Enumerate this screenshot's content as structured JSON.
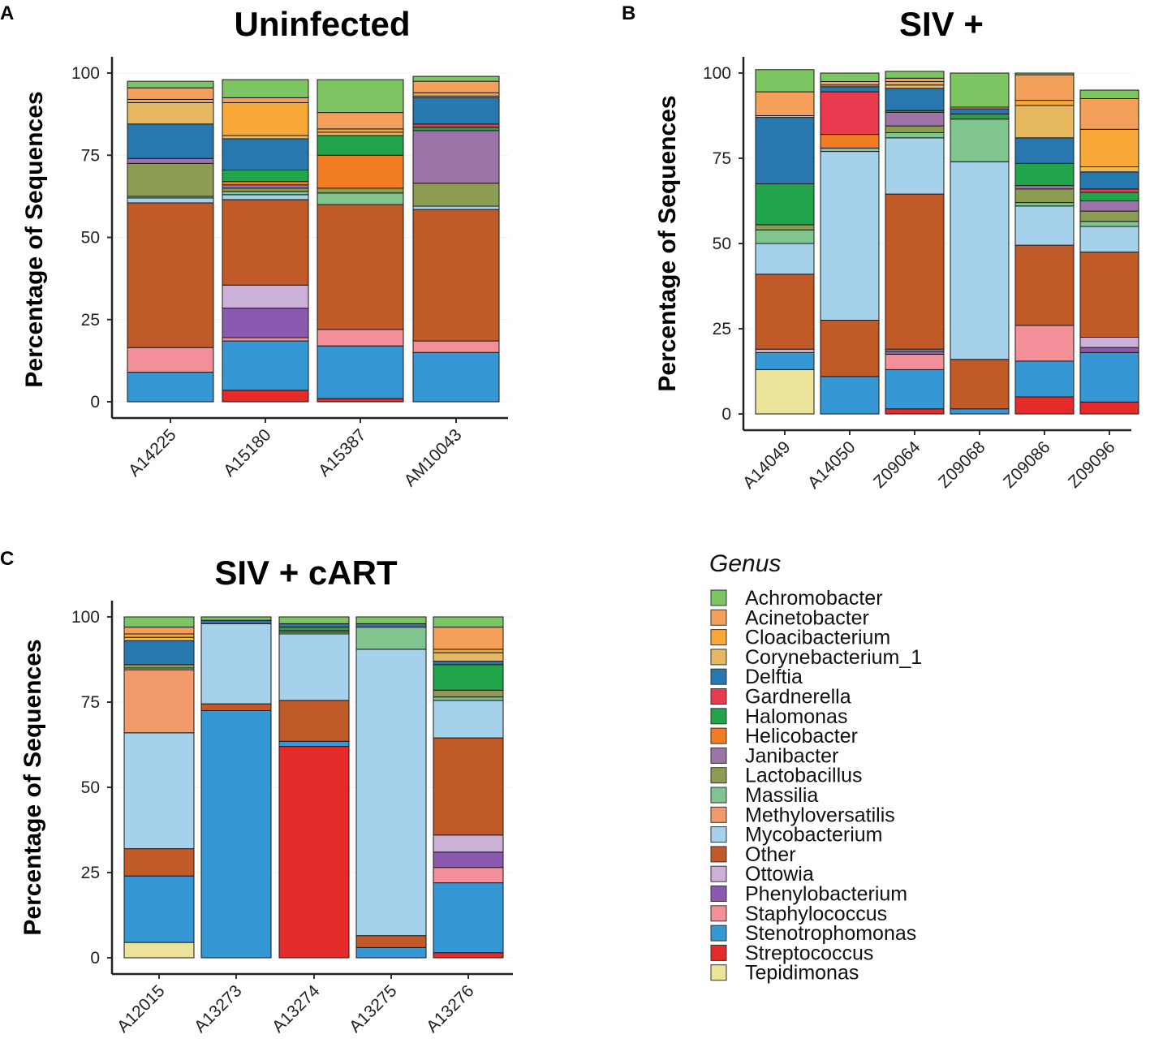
{
  "genus_order": [
    "Tepidimonas",
    "Streptococcus",
    "Stenotrophomonas",
    "Staphylococcus",
    "Phenylobacterium",
    "Ottowia",
    "Other",
    "Mycobacterium",
    "Methyloversatilis",
    "Massilia",
    "Lactobacillus",
    "Janibacter",
    "Helicobacter",
    "Halomonas",
    "Gardnerella",
    "Delftia",
    "Corynebacterium_1",
    "Cloacibacterium",
    "Acinetobacter",
    "Achromobacter"
  ],
  "colors": {
    "Achromobacter": "#7dc463",
    "Acinetobacter": "#f5a05a",
    "Cloacibacterium": "#f7a837",
    "Corynebacterium_1": "#e6b860",
    "Delftia": "#2878b0",
    "Gardnerella": "#e93a4f",
    "Halomonas": "#22a44a",
    "Helicobacter": "#f27c21",
    "Janibacter": "#9c74a8",
    "Lactobacillus": "#8c9c52",
    "Massilia": "#80c490",
    "Methyloversatilis": "#f29a6c",
    "Mycobacterium": "#a6d1ea",
    "Other": "#c05a28",
    "Ottowia": "#cbb0d8",
    "Phenylobacterium": "#8b59b0",
    "Staphylococcus": "#f28f98",
    "Stenotrophomonas": "#3597d3",
    "Streptococcus": "#e52a2a",
    "Tepidimonas": "#ebe39a"
  },
  "legend": {
    "title": "Genus",
    "items": [
      "Achromobacter",
      "Acinetobacter",
      "Cloacibacterium",
      "Corynebacterium_1",
      "Delftia",
      "Gardnerella",
      "Halomonas",
      "Helicobacter",
      "Janibacter",
      "Lactobacillus",
      "Massilia",
      "Methyloversatilis",
      "Mycobacterium",
      "Other",
      "Ottowia",
      "Phenylobacterium",
      "Staphylococcus",
      "Stenotrophomonas",
      "Streptococcus",
      "Tepidimonas"
    ]
  },
  "chart_data": [
    {
      "panel": "A",
      "type": "bar",
      "stacked": true,
      "title": "Uninfected",
      "ylabel": "Percentage of Sequences",
      "xlabel": "",
      "ylim": [
        0,
        100
      ],
      "yticks": [
        0,
        25,
        50,
        75,
        100
      ],
      "categories": [
        "A14225",
        "A15180",
        "A15387",
        "AM10043"
      ],
      "series": [
        {
          "name": "Tepidimonas",
          "values": [
            0,
            0,
            0,
            0
          ]
        },
        {
          "name": "Streptococcus",
          "values": [
            0,
            3.5,
            1,
            0
          ]
        },
        {
          "name": "Stenotrophomonas",
          "values": [
            9,
            15,
            16,
            15
          ]
        },
        {
          "name": "Staphylococcus",
          "values": [
            7.5,
            1,
            5,
            3.5
          ]
        },
        {
          "name": "Phenylobacterium",
          "values": [
            0,
            9,
            0,
            0
          ]
        },
        {
          "name": "Ottowia",
          "values": [
            0,
            7,
            0,
            0
          ]
        },
        {
          "name": "Other",
          "values": [
            44,
            26,
            38,
            40
          ]
        },
        {
          "name": "Mycobacterium",
          "values": [
            1.5,
            1.5,
            0,
            1
          ]
        },
        {
          "name": "Methyloversatilis",
          "values": [
            0,
            0,
            0,
            0
          ]
        },
        {
          "name": "Massilia",
          "values": [
            0.5,
            1,
            3.5,
            0
          ]
        },
        {
          "name": "Lactobacillus",
          "values": [
            10,
            1,
            1.5,
            7
          ]
        },
        {
          "name": "Janibacter",
          "values": [
            1.5,
            1,
            0,
            16
          ]
        },
        {
          "name": "Helicobacter",
          "values": [
            0,
            1,
            10,
            0
          ]
        },
        {
          "name": "Halomonas",
          "values": [
            0,
            3.5,
            6,
            1
          ]
        },
        {
          "name": "Gardnerella",
          "values": [
            0,
            0,
            0,
            1
          ]
        },
        {
          "name": "Delftia",
          "values": [
            10.5,
            9.5,
            0,
            8
          ]
        },
        {
          "name": "Corynebacterium_1",
          "values": [
            6.5,
            1,
            1,
            0.5
          ]
        },
        {
          "name": "Cloacibacterium",
          "values": [
            1,
            10,
            1,
            1
          ]
        },
        {
          "name": "Acinetobacter",
          "values": [
            3.5,
            1.5,
            5,
            3.5
          ]
        },
        {
          "name": "Achromobacter",
          "values": [
            2,
            5.5,
            10,
            1.5
          ]
        }
      ]
    },
    {
      "panel": "B",
      "type": "bar",
      "stacked": true,
      "title": "SIV +",
      "ylabel": "Percentage of Sequences",
      "xlabel": "",
      "ylim": [
        0,
        100
      ],
      "yticks": [
        0,
        25,
        50,
        75,
        100
      ],
      "categories": [
        "A14049",
        "A14050",
        "Z09064",
        "Z09068",
        "Z09086",
        "Z09096"
      ],
      "series": [
        {
          "name": "Tepidimonas",
          "values": [
            13,
            0,
            0,
            0,
            0,
            0
          ]
        },
        {
          "name": "Streptococcus",
          "values": [
            0,
            0,
            1.5,
            0,
            5,
            3.5
          ]
        },
        {
          "name": "Stenotrophomonas",
          "values": [
            5,
            11,
            11.5,
            1.5,
            10.5,
            14.5
          ]
        },
        {
          "name": "Staphylococcus",
          "values": [
            0,
            0,
            4.5,
            0,
            10.5,
            0
          ]
        },
        {
          "name": "Phenylobacterium",
          "values": [
            0,
            0,
            1,
            0,
            0,
            1.5
          ]
        },
        {
          "name": "Ottowia",
          "values": [
            1,
            0,
            0.5,
            0,
            0,
            3
          ]
        },
        {
          "name": "Other",
          "values": [
            22,
            16.5,
            45.5,
            14.5,
            23.5,
            25
          ]
        },
        {
          "name": "Mycobacterium",
          "values": [
            9,
            49.5,
            16.5,
            58,
            11.5,
            7.5
          ]
        },
        {
          "name": "Methyloversatilis",
          "values": [
            0,
            0,
            0,
            0,
            0,
            0
          ]
        },
        {
          "name": "Massilia",
          "values": [
            4,
            1,
            1.5,
            12.5,
            1,
            1.5
          ]
        },
        {
          "name": "Lactobacillus",
          "values": [
            1.5,
            0,
            2,
            0,
            4,
            3
          ]
        },
        {
          "name": "Janibacter",
          "values": [
            0,
            0,
            4,
            0,
            1,
            3
          ]
        },
        {
          "name": "Helicobacter",
          "values": [
            0,
            4,
            0,
            0,
            0,
            0
          ]
        },
        {
          "name": "Halomonas",
          "values": [
            12,
            0,
            0.5,
            1.5,
            6.5,
            2.5
          ]
        },
        {
          "name": "Gardnerella",
          "values": [
            0,
            12.5,
            0,
            0,
            0,
            1
          ]
        },
        {
          "name": "Delftia",
          "values": [
            19.5,
            1.5,
            6.5,
            1.5,
            7.5,
            5
          ]
        },
        {
          "name": "Corynebacterium_1",
          "values": [
            0.5,
            0,
            1,
            0,
            9.5,
            1.5
          ]
        },
        {
          "name": "Cloacibacterium",
          "values": [
            0,
            0.5,
            1,
            0,
            1.5,
            11
          ]
        },
        {
          "name": "Acinetobacter",
          "values": [
            7,
            1,
            1,
            0.5,
            7.5,
            9
          ]
        },
        {
          "name": "Achromobacter",
          "values": [
            6.5,
            2.5,
            2,
            10,
            0.5,
            2.5
          ]
        }
      ]
    },
    {
      "panel": "C",
      "type": "bar",
      "stacked": true,
      "title": "SIV + cART",
      "ylabel": "Percentage of Sequences",
      "xlabel": "",
      "ylim": [
        0,
        100
      ],
      "yticks": [
        0,
        25,
        50,
        75,
        100
      ],
      "categories": [
        "A12015",
        "A13273",
        "A13274",
        "A13275",
        "A13276"
      ],
      "series": [
        {
          "name": "Tepidimonas",
          "values": [
            4.5,
            0,
            0,
            0,
            0
          ]
        },
        {
          "name": "Streptococcus",
          "values": [
            0,
            0,
            62,
            0,
            1.5
          ]
        },
        {
          "name": "Stenotrophomonas",
          "values": [
            19.5,
            72.5,
            1.5,
            3,
            20.5
          ]
        },
        {
          "name": "Staphylococcus",
          "values": [
            0,
            0,
            0,
            0,
            4.5
          ]
        },
        {
          "name": "Phenylobacterium",
          "values": [
            0,
            0,
            0,
            0,
            4.5
          ]
        },
        {
          "name": "Ottowia",
          "values": [
            0,
            0,
            0,
            0,
            5
          ]
        },
        {
          "name": "Other",
          "values": [
            8,
            2,
            12,
            3.5,
            28.5
          ]
        },
        {
          "name": "Mycobacterium",
          "values": [
            34,
            23.5,
            19.5,
            84,
            11
          ]
        },
        {
          "name": "Methyloversatilis",
          "values": [
            18.5,
            0,
            0,
            0,
            0
          ]
        },
        {
          "name": "Massilia",
          "values": [
            0.5,
            0,
            0.5,
            6.5,
            1
          ]
        },
        {
          "name": "Lactobacillus",
          "values": [
            1,
            0,
            0.5,
            0,
            2
          ]
        },
        {
          "name": "Janibacter",
          "values": [
            0,
            0,
            0,
            0,
            0
          ]
        },
        {
          "name": "Helicobacter",
          "values": [
            0,
            0,
            0,
            0,
            0
          ]
        },
        {
          "name": "Halomonas",
          "values": [
            0,
            0,
            1,
            0,
            7.5
          ]
        },
        {
          "name": "Gardnerella",
          "values": [
            0,
            0,
            0,
            0,
            0
          ]
        },
        {
          "name": "Delftia",
          "values": [
            7,
            1,
            1,
            1,
            1
          ]
        },
        {
          "name": "Corynebacterium_1",
          "values": [
            1,
            0,
            0,
            0,
            2.5
          ]
        },
        {
          "name": "Cloacibacterium",
          "values": [
            1,
            0,
            0,
            0,
            1
          ]
        },
        {
          "name": "Acinetobacter",
          "values": [
            2,
            0,
            0,
            0,
            6.5
          ]
        },
        {
          "name": "Achromobacter",
          "values": [
            3,
            1,
            2,
            2,
            3
          ]
        }
      ]
    }
  ]
}
